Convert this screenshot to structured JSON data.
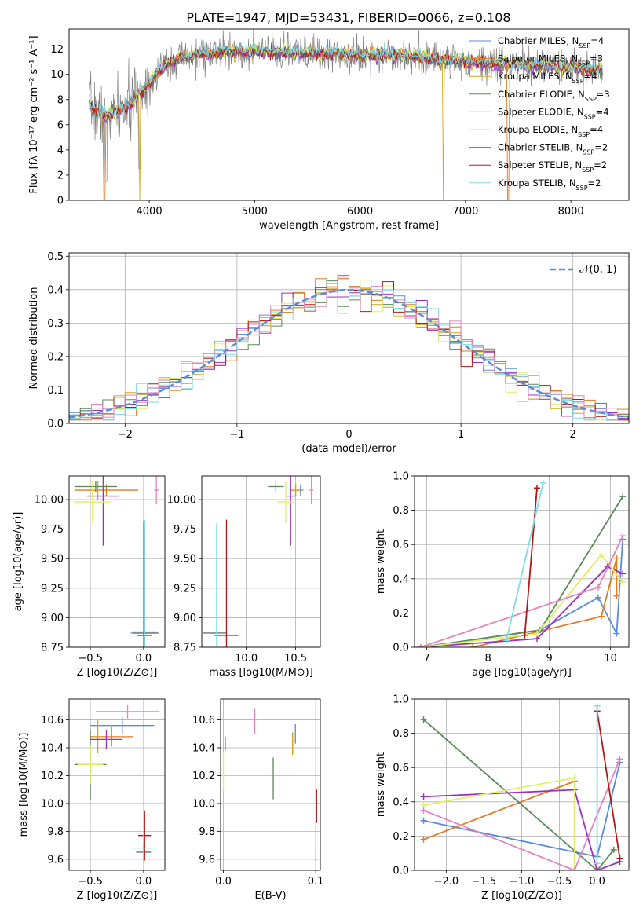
{
  "title": "PLATE=1947, MJD=53431, FIBERID=0066, z=0.108",
  "colors": {
    "Chabrier MILES": "#5b8bd8",
    "Salpeter MILES": "#e07b20",
    "Kroupa MILES": "#d4a520",
    "Chabrier ELODIE": "#5a8a5a",
    "Salpeter ELODIE": "#9b30c0",
    "Kroupa ELODIE": "#dff060",
    "Chabrier STELIB": "#707070",
    "Salpeter STELIB": "#b01818",
    "Kroupa STELIB": "#7fdde8",
    "pink": "#e384c0",
    "normal": "#5b8bd8"
  },
  "chart_data": [
    {
      "id": "spectrum",
      "type": "line",
      "xlabel": "wavelength [Angstrom, rest frame]",
      "ylabel": "Flux [fλ 10⁻¹⁷ erg cm⁻² s⁻¹ A⁻¹]",
      "xlim": [
        3240,
        8550
      ],
      "ylim": [
        0,
        13.6
      ],
      "xticks": [
        4000,
        5000,
        6000,
        7000,
        8000
      ],
      "yticks": [
        0,
        2,
        4,
        6,
        8,
        10,
        12
      ],
      "grid": false,
      "legend": [
        "Chabrier MILES, N_SSP=4",
        "Salpeter MILES, N_SSP=3",
        "Kroupa MILES, N_SSP=4",
        "Chabrier ELODIE, N_SSP=3",
        "Salpeter ELODIE, N_SSP=4",
        "Kroupa ELODIE, N_SSP=4",
        "Chabrier STELIB, N_SSP=2",
        "Salpeter STELIB, N_SSP=2",
        "Kroupa STELIB, N_SSP=2"
      ],
      "legend_position": "upper right",
      "continuum": {
        "x": [
          3430,
          3500,
          3600,
          3700,
          3800,
          3900,
          4000,
          4100,
          4200,
          4300,
          4400,
          4500,
          4700,
          5000,
          5300,
          5600,
          5800,
          6000,
          6200,
          6400,
          6600,
          6800,
          7000,
          7200,
          7400,
          7600,
          7800,
          8000,
          8300
        ],
        "y": [
          7.7,
          7.0,
          6.7,
          7.0,
          7.5,
          8.4,
          9.2,
          10.4,
          10.9,
          11.2,
          11.4,
          11.6,
          11.7,
          11.8,
          11.7,
          11.6,
          11.6,
          11.5,
          11.6,
          11.5,
          11.3,
          11.1,
          11.0,
          10.9,
          10.8,
          10.7,
          10.6,
          10.5,
          10.3
        ]
      }
    },
    {
      "id": "residuals",
      "type": "step-histogram",
      "xlabel": "(data-model)/error",
      "ylabel": "Normed distribution",
      "xlim": [
        -2.5,
        2.5
      ],
      "ylim": [
        0,
        0.51
      ],
      "xticks": [
        -2,
        -1,
        0,
        1,
        2
      ],
      "yticks": [
        0.0,
        0.1,
        0.2,
        0.3,
        0.4,
        0.5
      ],
      "grid": true,
      "legend": [
        "N(0,1)"
      ],
      "legend_position": "upper right",
      "bin_width": 0.1
    },
    {
      "id": "age-vs-Z",
      "type": "errorbar",
      "xlabel": "Z [log10(Z/Z⊙)]",
      "ylabel": "age  [log10(age/yr)]",
      "xlim": [
        -0.7,
        0.2
      ],
      "ylim": [
        8.75,
        10.2
      ],
      "xticks": [
        -0.5,
        0.0
      ],
      "yticks": [
        8.75,
        9.0,
        9.25,
        9.5,
        9.75,
        10.0
      ],
      "grid": true,
      "points": [
        {
          "c": "Chabrier MILES",
          "x": 0.0,
          "y": 8.87,
          "xerr": 0.12,
          "yerr": 0.95
        },
        {
          "c": "Salpeter MILES",
          "x": -0.35,
          "y": 10.08,
          "xerr": 0.3,
          "yerr": 0.05
        },
        {
          "c": "Kroupa MILES",
          "x": -0.43,
          "y": 10.08,
          "xerr": 0.05,
          "yerr": 0.08
        },
        {
          "c": "Chabrier ELODIE",
          "x": -0.45,
          "y": 10.11,
          "xerr": 0.2,
          "yerr": 0.05
        },
        {
          "c": "Salpeter ELODIE",
          "x": -0.38,
          "y": 10.03,
          "xerr": 0.15,
          "yerr": 0.42
        },
        {
          "c": "Kroupa ELODIE",
          "x": -0.48,
          "y": 9.98,
          "xerr": 0.18,
          "yerr": 0.18
        },
        {
          "c": "Chabrier STELIB",
          "x": 0.02,
          "y": 8.87,
          "xerr": 0.12,
          "yerr": 0.0
        },
        {
          "c": "Salpeter STELIB",
          "x": 0.01,
          "y": 8.85,
          "xerr": 0.07,
          "yerr": 0.9
        },
        {
          "c": "Kroupa STELIB",
          "x": 0.01,
          "y": 8.88,
          "xerr": 0.12,
          "yerr": 0.95
        },
        {
          "c": "pink",
          "x": 0.12,
          "y": 10.08,
          "xerr": 0.02,
          "yerr": 0.12
        }
      ]
    },
    {
      "id": "age-vs-mass",
      "type": "errorbar",
      "xlabel": "mass [log10(M/M⊙)]",
      "ylabel": "",
      "xlim": [
        9.55,
        10.75
      ],
      "ylim": [
        8.75,
        10.2
      ],
      "xticks": [
        10.0,
        10.5
      ],
      "yticks": [
        8.75,
        9.0,
        9.25,
        9.5,
        9.75,
        10.0
      ],
      "grid": true,
      "points": [
        {
          "c": "Chabrier MILES",
          "x": 10.55,
          "y": 10.08,
          "xerr": 0.03,
          "yerr": 0.05
        },
        {
          "c": "Salpeter MILES",
          "x": 10.5,
          "y": 10.08,
          "xerr": 0.06,
          "yerr": 0.05
        },
        {
          "c": "Kroupa MILES",
          "x": 10.5,
          "y": 10.08,
          "xerr": 0.05,
          "yerr": 0.05
        },
        {
          "c": "Chabrier ELODIE",
          "x": 10.3,
          "y": 10.11,
          "xerr": 0.08,
          "yerr": 0.05
        },
        {
          "c": "Salpeter ELODIE",
          "x": 10.45,
          "y": 10.03,
          "xerr": 0.05,
          "yerr": 0.42
        },
        {
          "c": "Kroupa ELODIE",
          "x": 10.4,
          "y": 9.98,
          "xerr": 0.08,
          "yerr": 0.18
        },
        {
          "c": "Chabrier STELIB",
          "x": 9.68,
          "y": 8.87,
          "xerr": 0.12,
          "yerr": 0.0
        },
        {
          "c": "Salpeter STELIB",
          "x": 9.8,
          "y": 8.85,
          "xerr": 0.12,
          "yerr": 0.98
        },
        {
          "c": "Kroupa STELIB",
          "x": 9.7,
          "y": 8.88,
          "xerr": 0.02,
          "yerr": 0.92
        },
        {
          "c": "pink",
          "x": 10.66,
          "y": 10.08,
          "xerr": 0.02,
          "yerr": 0.12
        }
      ]
    },
    {
      "id": "weight-vs-age",
      "type": "line",
      "xlabel": "age  [log10(age/yr)]",
      "ylabel": "mass weight",
      "xlim": [
        6.8,
        10.3
      ],
      "ylim": [
        0,
        1.0
      ],
      "xticks": [
        7,
        8,
        9,
        10
      ],
      "yticks": [
        0.0,
        0.2,
        0.4,
        0.6,
        0.8,
        1.0
      ],
      "grid": true,
      "series": [
        {
          "c": "Chabrier MILES",
          "x": [
            6.9,
            8.85,
            9.8,
            10.1,
            10.2
          ],
          "y": [
            0.0,
            0.1,
            0.29,
            0.08,
            0.63
          ]
        },
        {
          "c": "Salpeter MILES",
          "x": [
            7.75,
            9.85,
            10.1,
            10.1
          ],
          "y": [
            0.0,
            0.18,
            0.52,
            0.3
          ]
        },
        {
          "c": "Chabrier ELODIE",
          "x": [
            6.9,
            8.85,
            10.2
          ],
          "y": [
            0.0,
            0.1,
            0.88
          ]
        },
        {
          "c": "Salpeter ELODIE",
          "x": [
            6.9,
            8.8,
            9.95,
            10.2
          ],
          "y": [
            0.0,
            0.05,
            0.47,
            0.43
          ]
        },
        {
          "c": "Kroupa ELODIE",
          "x": [
            6.9,
            8.8,
            9.85,
            10.2
          ],
          "y": [
            0.0,
            0.08,
            0.54,
            0.38
          ]
        },
        {
          "c": "pink",
          "x": [
            6.9,
            9.8,
            10.2
          ],
          "y": [
            0.0,
            0.35,
            0.65
          ]
        },
        {
          "c": "Salpeter STELIB",
          "x": [
            8.6,
            8.8
          ],
          "y": [
            0.07,
            0.93
          ]
        },
        {
          "c": "Kroupa STELIB",
          "x": [
            8.3,
            8.9
          ],
          "y": [
            0.04,
            0.96
          ]
        }
      ]
    },
    {
      "id": "mass-vs-Z",
      "type": "errorbar",
      "xlabel": "Z [log10(Z/Z⊙)]",
      "ylabel": "mass [log10(M/M⊙)]",
      "xlim": [
        -0.7,
        0.2
      ],
      "ylim": [
        9.52,
        10.75
      ],
      "xticks": [
        -0.5,
        0.0
      ],
      "yticks": [
        9.6,
        9.8,
        10.0,
        10.2,
        10.4,
        10.6
      ],
      "grid": true,
      "points": [
        {
          "c": "Chabrier MILES",
          "x": -0.2,
          "y": 10.56,
          "xerr": 0.3,
          "yerr": 0.06
        },
        {
          "c": "Salpeter MILES",
          "x": -0.3,
          "y": 10.48,
          "xerr": 0.2,
          "yerr": 0.07
        },
        {
          "c": "Kroupa MILES",
          "x": -0.43,
          "y": 10.48,
          "xerr": 0.05,
          "yerr": 0.12
        },
        {
          "c": "Chabrier ELODIE",
          "x": -0.5,
          "y": 10.28,
          "xerr": 0.15,
          "yerr": 0.25
        },
        {
          "c": "Salpeter ELODIE",
          "x": -0.35,
          "y": 10.46,
          "xerr": 0.15,
          "yerr": 0.07
        },
        {
          "c": "Kroupa ELODIE",
          "x": -0.5,
          "y": 10.28,
          "xerr": 0.12,
          "yerr": 0.14
        },
        {
          "c": "Chabrier STELIB",
          "x": 0.0,
          "y": 9.65,
          "xerr": 0.07,
          "yerr": 0.07
        },
        {
          "c": "Salpeter STELIB",
          "x": 0.01,
          "y": 9.77,
          "xerr": 0.06,
          "yerr": 0.18
        },
        {
          "c": "Kroupa STELIB",
          "x": 0.0,
          "y": 9.68,
          "xerr": 0.1,
          "yerr": 0.1
        },
        {
          "c": "pink",
          "x": -0.15,
          "y": 10.66,
          "xerr": 0.3,
          "yerr": 0.05
        }
      ]
    },
    {
      "id": "mass-vs-EBV",
      "type": "errorbar",
      "xlabel": "E(B-V)",
      "ylabel": "",
      "xlim": [
        -0.003,
        0.105
      ],
      "ylim": [
        9.52,
        10.75
      ],
      "xticks": [
        0.0,
        0.1
      ],
      "yticks": [
        9.6,
        9.8,
        10.0,
        10.2,
        10.4,
        10.6
      ],
      "grid": true,
      "points": [
        {
          "c": "Chabrier MILES",
          "x": 0.078,
          "y": 10.5,
          "xerr": 0.0,
          "yerr": 0.07
        },
        {
          "c": "Salpeter MILES",
          "x": 0.075,
          "y": 10.43,
          "xerr": 0.0,
          "yerr": 0.08
        },
        {
          "c": "Kroupa MILES",
          "x": 0.075,
          "y": 10.43,
          "xerr": 0.0,
          "yerr": 0.08
        },
        {
          "c": "Chabrier ELODIE",
          "x": 0.054,
          "y": 10.18,
          "xerr": 0.0,
          "yerr": 0.15
        },
        {
          "c": "Salpeter ELODIE",
          "x": 0.002,
          "y": 10.43,
          "xerr": 0.0,
          "yerr": 0.05
        },
        {
          "c": "Kroupa ELODIE",
          "x": 0.0,
          "y": 10.23,
          "xerr": 0.0,
          "yerr": 0.14
        },
        {
          "c": "Chabrier STELIB",
          "x": 0.1,
          "y": 9.62,
          "xerr": 0.0,
          "yerr": 0.03
        },
        {
          "c": "Salpeter STELIB",
          "x": 0.101,
          "y": 9.98,
          "xerr": 0.0,
          "yerr": 0.12
        },
        {
          "c": "Kroupa STELIB",
          "x": 0.1,
          "y": 9.72,
          "xerr": 0.0,
          "yerr": 0.12
        },
        {
          "c": "pink",
          "x": 0.034,
          "y": 10.59,
          "xerr": 0.0,
          "yerr": 0.09
        }
      ]
    },
    {
      "id": "weight-vs-Z",
      "type": "line",
      "xlabel": "Z [log10(Z/Z⊙)]",
      "ylabel": "mass weight",
      "xlim": [
        -2.42,
        0.42
      ],
      "ylim": [
        0,
        1.0
      ],
      "xticks": [
        -2.0,
        -1.5,
        -1.0,
        -0.5,
        0.0
      ],
      "yticks": [
        0.0,
        0.2,
        0.4,
        0.6,
        0.8,
        1.0
      ],
      "grid": true,
      "series": [
        {
          "c": "Chabrier MILES",
          "x": [
            -2.3,
            0.0,
            0.3
          ],
          "y": [
            0.29,
            0.08,
            0.63
          ]
        },
        {
          "c": "Salpeter MILES",
          "x": [
            -2.3,
            -0.3,
            -0.3
          ],
          "y": [
            0.18,
            0.52,
            0.0
          ]
        },
        {
          "c": "Chabrier ELODIE",
          "x": [
            -2.3,
            0.0,
            0.22
          ],
          "y": [
            0.88,
            0.0,
            0.12
          ]
        },
        {
          "c": "Salpeter ELODIE",
          "x": [
            -2.3,
            -0.3,
            0.0,
            0.3
          ],
          "y": [
            0.43,
            0.47,
            0.0,
            0.05
          ]
        },
        {
          "c": "Kroupa ELODIE",
          "x": [
            -2.3,
            -0.3,
            -0.3
          ],
          "y": [
            0.38,
            0.54,
            0.0
          ]
        },
        {
          "c": "pink",
          "x": [
            -2.3,
            -0.3,
            0.3
          ],
          "y": [
            0.35,
            0.0,
            0.65
          ]
        },
        {
          "c": "Salpeter STELIB",
          "x": [
            0.0,
            0.3
          ],
          "y": [
            0.93,
            0.07
          ]
        },
        {
          "c": "Kroupa STELIB",
          "x": [
            0.0,
            0.0
          ],
          "y": [
            0.04,
            0.96
          ]
        }
      ]
    }
  ]
}
